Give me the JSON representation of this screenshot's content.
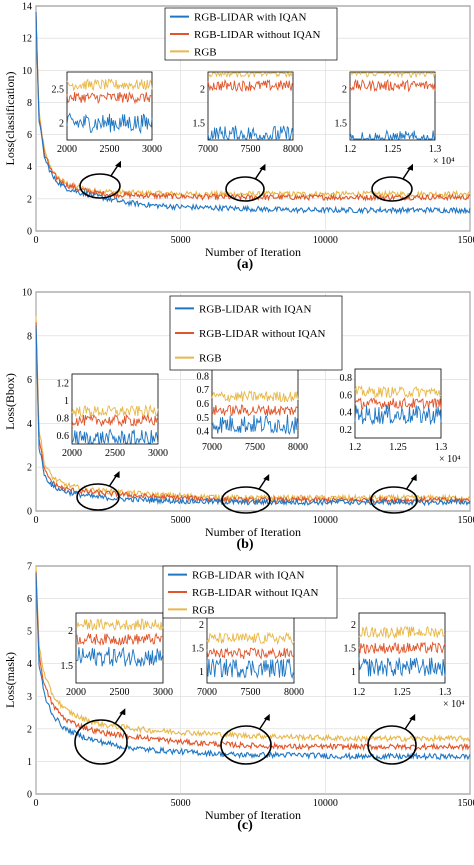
{
  "colors": {
    "iqan": "#1f77c4",
    "no_iqan": "#e0552a",
    "rgb": "#e8b84a"
  },
  "chart_data": [
    {
      "type": "line",
      "panel_label": "(a)",
      "xlabel": "Number of Iteration",
      "ylabel": "Loss(classification)",
      "xlim": [
        0,
        15000
      ],
      "ylim": [
        0,
        14
      ],
      "xticks": [
        0,
        5000,
        10000,
        15000
      ],
      "yticks": [
        0,
        2,
        4,
        6,
        8,
        10,
        12,
        14
      ],
      "grid": true,
      "legend": "top-center",
      "series": [
        {
          "name": "RGB-LIDAR with IQAN",
          "x": [
            0,
            100,
            300,
            600,
            1000,
            1500,
            2000,
            2500,
            3000,
            4000,
            5000,
            7000,
            9000,
            11000,
            13000,
            15000
          ],
          "y": [
            13.5,
            7.0,
            4.5,
            3.3,
            2.7,
            2.4,
            2.2,
            2.0,
            1.8,
            1.6,
            1.5,
            1.4,
            1.3,
            1.3,
            1.3,
            1.3
          ]
        },
        {
          "name": "RGB-LIDAR without IQAN",
          "x": [
            0,
            100,
            300,
            600,
            1000,
            1500,
            2000,
            2500,
            3000,
            4000,
            5000,
            7000,
            9000,
            11000,
            13000,
            15000
          ],
          "y": [
            13.5,
            7.2,
            4.7,
            3.5,
            2.9,
            2.6,
            2.4,
            2.3,
            2.25,
            2.2,
            2.15,
            2.1,
            2.1,
            2.1,
            2.1,
            2.1
          ]
        },
        {
          "name": "RGB",
          "x": [
            0,
            100,
            300,
            600,
            1000,
            1500,
            2000,
            2500,
            3000,
            4000,
            5000,
            7000,
            9000,
            11000,
            13000,
            15000
          ],
          "y": [
            13.6,
            7.4,
            4.9,
            3.6,
            3.0,
            2.7,
            2.5,
            2.45,
            2.4,
            2.35,
            2.3,
            2.3,
            2.3,
            2.3,
            2.3,
            2.3
          ]
        }
      ],
      "insets": [
        {
          "xlim": [
            2000,
            3000
          ],
          "ylim": [
            1.8,
            2.6
          ],
          "xticks": [
            "2000",
            "2500",
            "3000"
          ],
          "yticks": [
            "2",
            "2.5"
          ]
        },
        {
          "xlim": [
            7000,
            8000
          ],
          "ylim": [
            1.3,
            2.3
          ],
          "xticks": [
            "7000",
            "7500",
            "8000"
          ],
          "yticks": [
            "1.5",
            "2"
          ]
        },
        {
          "xlim": [
            1.2,
            1.3
          ],
          "ylim": [
            1.3,
            2.3
          ],
          "xticks": [
            "1.2",
            "1.25",
            "1.3"
          ],
          "yticks": [
            "1.5",
            "2"
          ],
          "multiplier": "× 10⁴"
        }
      ]
    },
    {
      "type": "line",
      "panel_label": "(b)",
      "xlabel": "Number of Iteration",
      "ylabel": "Loss(Bbox)",
      "xlim": [
        0,
        15000
      ],
      "ylim": [
        0,
        10
      ],
      "xticks": [
        0,
        5000,
        10000,
        15000
      ],
      "yticks": [
        0,
        2,
        4,
        6,
        8,
        10
      ],
      "grid": true,
      "legend": "top-center",
      "series": [
        {
          "name": "RGB-LIDAR with IQAN",
          "x": [
            0,
            100,
            300,
            600,
            1000,
            1500,
            2000,
            2500,
            3000,
            4000,
            5000,
            7000,
            9000,
            11000,
            13000,
            15000
          ],
          "y": [
            8.5,
            3.0,
            1.6,
            1.1,
            0.9,
            0.75,
            0.65,
            0.6,
            0.55,
            0.5,
            0.45,
            0.4,
            0.4,
            0.4,
            0.4,
            0.4
          ]
        },
        {
          "name": "RGB-LIDAR without IQAN",
          "x": [
            0,
            100,
            300,
            600,
            1000,
            1500,
            2000,
            2500,
            3000,
            4000,
            5000,
            7000,
            9000,
            11000,
            13000,
            15000
          ],
          "y": [
            8.7,
            3.3,
            1.8,
            1.25,
            1.0,
            0.9,
            0.85,
            0.8,
            0.75,
            0.65,
            0.6,
            0.5,
            0.5,
            0.5,
            0.5,
            0.5
          ]
        },
        {
          "name": "RGB",
          "x": [
            0,
            100,
            300,
            600,
            1000,
            1500,
            2000,
            2500,
            3000,
            4000,
            5000,
            7000,
            9000,
            11000,
            13000,
            15000
          ],
          "y": [
            9.0,
            3.8,
            2.1,
            1.5,
            1.2,
            1.05,
            0.95,
            0.9,
            0.85,
            0.75,
            0.7,
            0.6,
            0.6,
            0.6,
            0.6,
            0.6
          ]
        }
      ],
      "insets": [
        {
          "xlim": [
            2000,
            3000
          ],
          "ylim": [
            0.55,
            1.3
          ],
          "xticks": [
            "2000",
            "2500",
            "3000"
          ],
          "yticks": [
            "0.6",
            "0.8",
            "1",
            "1.2"
          ]
        },
        {
          "xlim": [
            7000,
            8000
          ],
          "ylim": [
            0.3,
            0.8
          ],
          "xticks": [
            "7000",
            "7500",
            "8000"
          ],
          "yticks": [
            "0.4",
            "0.5",
            "0.6",
            "0.7",
            "0.8"
          ]
        },
        {
          "xlim": [
            1.2,
            1.3
          ],
          "ylim": [
            0.2,
            0.8
          ],
          "xticks": [
            "1.2",
            "1.25",
            "1.3"
          ],
          "yticks": [
            "0.2",
            "0.4",
            "0.6",
            "0.8"
          ],
          "multiplier": "× 10⁴"
        }
      ]
    },
    {
      "type": "line",
      "panel_label": "(c)",
      "xlabel": "Number of Iteration",
      "ylabel": "Loss(mask)",
      "xlim": [
        0,
        15000
      ],
      "ylim": [
        0,
        7
      ],
      "xticks": [
        0,
        5000,
        10000,
        15000
      ],
      "yticks": [
        0,
        1,
        2,
        3,
        4,
        5,
        6,
        7
      ],
      "grid": true,
      "legend": "top-center",
      "series": [
        {
          "name": "RGB-LIDAR with IQAN",
          "x": [
            0,
            100,
            300,
            600,
            1000,
            1500,
            2000,
            2500,
            3000,
            4000,
            5000,
            7000,
            9000,
            11000,
            13000,
            15000
          ],
          "y": [
            6.8,
            4.0,
            3.0,
            2.4,
            2.0,
            1.8,
            1.65,
            1.55,
            1.45,
            1.35,
            1.3,
            1.2,
            1.2,
            1.15,
            1.15,
            1.15
          ]
        },
        {
          "name": "RGB-LIDAR without IQAN",
          "x": [
            0,
            100,
            300,
            600,
            1000,
            1500,
            2000,
            2500,
            3000,
            4000,
            5000,
            7000,
            9000,
            11000,
            13000,
            15000
          ],
          "y": [
            6.9,
            4.3,
            3.3,
            2.7,
            2.3,
            2.1,
            1.95,
            1.85,
            1.8,
            1.7,
            1.6,
            1.5,
            1.45,
            1.45,
            1.45,
            1.45
          ]
        },
        {
          "name": "RGB",
          "x": [
            0,
            100,
            300,
            600,
            1000,
            1500,
            2000,
            2500,
            3000,
            4000,
            5000,
            7000,
            9000,
            11000,
            13000,
            15000
          ],
          "y": [
            7.0,
            4.6,
            3.6,
            3.0,
            2.6,
            2.35,
            2.2,
            2.1,
            2.05,
            1.95,
            1.9,
            1.8,
            1.75,
            1.7,
            1.7,
            1.7
          ]
        }
      ],
      "insets": [
        {
          "xlim": [
            2000,
            3000
          ],
          "ylim": [
            1.1,
            2.3
          ],
          "xticks": [
            "2000",
            "2500",
            "3000"
          ],
          "yticks": [
            "1.5",
            "2"
          ]
        },
        {
          "xlim": [
            7000,
            8000
          ],
          "ylim": [
            0.9,
            2.3
          ],
          "xticks": [
            "7000",
            "7500",
            "8000"
          ],
          "yticks": [
            "1",
            "1.5",
            "2"
          ]
        },
        {
          "xlim": [
            1.2,
            1.3
          ],
          "ylim": [
            0.9,
            2.0
          ],
          "xticks": [
            "1.2",
            "1.25",
            "1.3"
          ],
          "yticks": [
            "1",
            "1.5",
            "2"
          ],
          "multiplier": "× 10⁴"
        }
      ]
    }
  ]
}
